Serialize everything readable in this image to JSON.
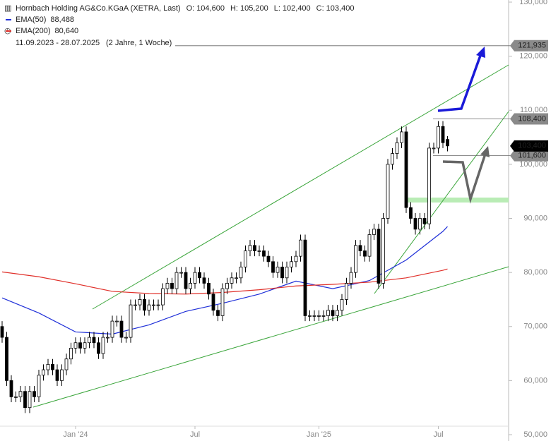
{
  "chart_data": {
    "type": "candlestick",
    "header": {
      "title": "Hornbach Holding AG&Co.KGaA (XETRA, Last)",
      "ohlc": [
        {
          "name": "O:",
          "value": 104.6,
          "label": "104,600"
        },
        {
          "name": "H:",
          "value": 105.2,
          "label": "105,200"
        },
        {
          "name": "L:",
          "value": 102.4,
          "label": "102,400"
        },
        {
          "name": "C:",
          "value": 103.4,
          "label": "103,400"
        }
      ],
      "range": "11.09.2023 - 28.07.2025",
      "duration": "(2 Jahre, 1 Woche)"
    },
    "categories": [
      null,
      null,
      null,
      null,
      null,
      null,
      null,
      null,
      null,
      null,
      null,
      null,
      null,
      null,
      null,
      null,
      "Jan '24",
      null,
      null,
      null,
      null,
      null,
      null,
      null,
      null,
      null,
      null,
      null,
      null,
      null,
      null,
      null,
      null,
      null,
      null,
      null,
      null,
      null,
      null,
      null,
      null,
      null,
      "Jul",
      null,
      null,
      null,
      null,
      null,
      null,
      null,
      null,
      null,
      null,
      null,
      null,
      null,
      null,
      null,
      null,
      null,
      null,
      null,
      null,
      null,
      null,
      null,
      null,
      null,
      null,
      "Jan '25",
      null,
      null,
      null,
      null,
      null,
      null,
      null,
      null,
      null,
      null,
      null,
      null,
      null,
      null,
      null,
      null,
      null,
      null,
      null,
      null,
      null,
      null,
      null,
      null,
      null,
      "Jul",
      null,
      null
    ],
    "open": [
      70,
      68,
      60,
      57,
      57,
      58,
      55,
      58,
      57,
      61,
      62,
      63,
      62,
      60,
      62,
      64,
      66,
      67,
      66,
      67,
      68,
      67,
      65,
      68,
      68,
      71,
      71,
      68,
      68,
      74,
      74,
      75,
      73,
      74,
      74,
      74,
      77,
      78,
      77,
      80,
      80,
      77,
      78,
      80,
      79,
      78,
      76,
      73,
      72,
      77,
      78,
      79,
      79,
      81,
      84,
      85,
      84,
      84,
      83,
      82,
      80,
      81,
      79,
      81,
      82,
      83,
      86,
      72,
      72,
      72,
      72,
      72,
      73,
      72,
      73,
      75,
      78,
      80,
      85,
      84,
      83,
      87,
      88,
      78,
      90,
      100,
      102,
      104,
      106,
      92,
      90,
      88,
      90,
      89,
      103,
      103,
      107,
      104.6
    ],
    "high": [
      71,
      69,
      61,
      58,
      59,
      59,
      59,
      59,
      62,
      63,
      64,
      64,
      63,
      63,
      65,
      67,
      68,
      68,
      68,
      69,
      69,
      68,
      69,
      69,
      72,
      72,
      72,
      69,
      75,
      75,
      76,
      76,
      75,
      75,
      75,
      78,
      79,
      79,
      81,
      81,
      81,
      79,
      81,
      81,
      80,
      79,
      77,
      74,
      78,
      79,
      80,
      80,
      82,
      85,
      86,
      86,
      85,
      85,
      84,
      83,
      82,
      82,
      82,
      83,
      84,
      87,
      87,
      73,
      73,
      73,
      73,
      74,
      74,
      74,
      76,
      79,
      81,
      86,
      86,
      85,
      88,
      89,
      89,
      91,
      101,
      103,
      105,
      107,
      107,
      93,
      91,
      91,
      91,
      104,
      104,
      108,
      108,
      105.2
    ],
    "low": [
      67,
      59,
      56,
      56,
      56,
      54,
      54,
      56,
      56,
      60,
      61,
      61,
      59,
      59,
      61,
      63,
      65,
      65,
      65,
      66,
      66,
      64,
      64,
      67,
      67,
      70,
      67,
      67,
      67,
      73,
      73,
      72,
      72,
      73,
      73,
      73,
      76,
      76,
      76,
      79,
      76,
      76,
      77,
      78,
      77,
      75,
      72,
      71,
      71,
      76,
      77,
      78,
      78,
      80,
      83,
      83,
      83,
      82,
      81,
      79,
      79,
      78,
      78,
      80,
      81,
      82,
      71,
      71,
      71,
      71,
      71,
      71,
      71,
      71,
      72,
      74,
      77,
      79,
      83,
      82,
      82,
      86,
      77,
      77,
      89,
      99,
      101,
      103,
      91,
      89,
      87,
      87,
      88,
      88,
      102,
      102,
      103,
      102.4
    ],
    "close": [
      68,
      60,
      57,
      57,
      58,
      55,
      58,
      57,
      61,
      62,
      63,
      62,
      60,
      62,
      64,
      66,
      67,
      66,
      67,
      68,
      67,
      65,
      68,
      68,
      71,
      71,
      68,
      68,
      74,
      74,
      75,
      73,
      74,
      74,
      74,
      77,
      78,
      77,
      80,
      80,
      77,
      78,
      80,
      79,
      78,
      76,
      73,
      72,
      77,
      78,
      79,
      79,
      81,
      84,
      85,
      84,
      84,
      83,
      82,
      80,
      81,
      79,
      81,
      82,
      83,
      86,
      72,
      72,
      72,
      72,
      72,
      73,
      72,
      73,
      75,
      78,
      80,
      85,
      84,
      83,
      87,
      88,
      78,
      90,
      100,
      102,
      104,
      106,
      92,
      90,
      88,
      90,
      89,
      103,
      103,
      107,
      104,
      103.4
    ],
    "series": [
      {
        "name": "EMA(50)",
        "color": "#1f2fd8",
        "value_label": "88,488",
        "x": [
          0,
          8,
          16,
          24,
          32,
          40,
          48,
          56,
          64,
          72,
          80,
          88,
          96,
          97
        ],
        "values": [
          75.3,
          72.5,
          69.0,
          68.6,
          70.3,
          72.8,
          74.3,
          76.0,
          78.4,
          77.0,
          78.5,
          82.3,
          87.6,
          88.488
        ]
      },
      {
        "name": "EMA(200)",
        "color": "#e0302a",
        "value_label": "80,640",
        "x": [
          0,
          8,
          16,
          24,
          32,
          40,
          48,
          56,
          64,
          72,
          80,
          88,
          96,
          97
        ],
        "values": [
          80.1,
          79.2,
          77.9,
          76.5,
          76.1,
          76.0,
          76.3,
          76.8,
          77.5,
          77.8,
          78.2,
          79.0,
          80.4,
          80.64
        ]
      }
    ],
    "price_labels": [
      {
        "value": 121.935,
        "label": "121,935",
        "style": "gray"
      },
      {
        "value": 108.4,
        "label": "108,400",
        "style": "gray"
      },
      {
        "value": 101.6,
        "label": "101,600",
        "style": "gray"
      },
      {
        "value": 103.4,
        "label": "103,400",
        "style": "black"
      }
    ],
    "ylim": [
      50,
      130
    ],
    "yticks": [
      {
        "value": 50,
        "label": "50,000"
      },
      {
        "value": 60,
        "label": "60,000"
      },
      {
        "value": 70,
        "label": "70,000"
      },
      {
        "value": 80,
        "label": "80,000"
      },
      {
        "value": 90,
        "label": "90,000"
      },
      {
        "value": 100,
        "label": "100,000"
      },
      {
        "value": 110,
        "label": "110,000"
      },
      {
        "value": 120,
        "label": "120,000"
      },
      {
        "value": 130,
        "label": "130,000"
      }
    ]
  }
}
